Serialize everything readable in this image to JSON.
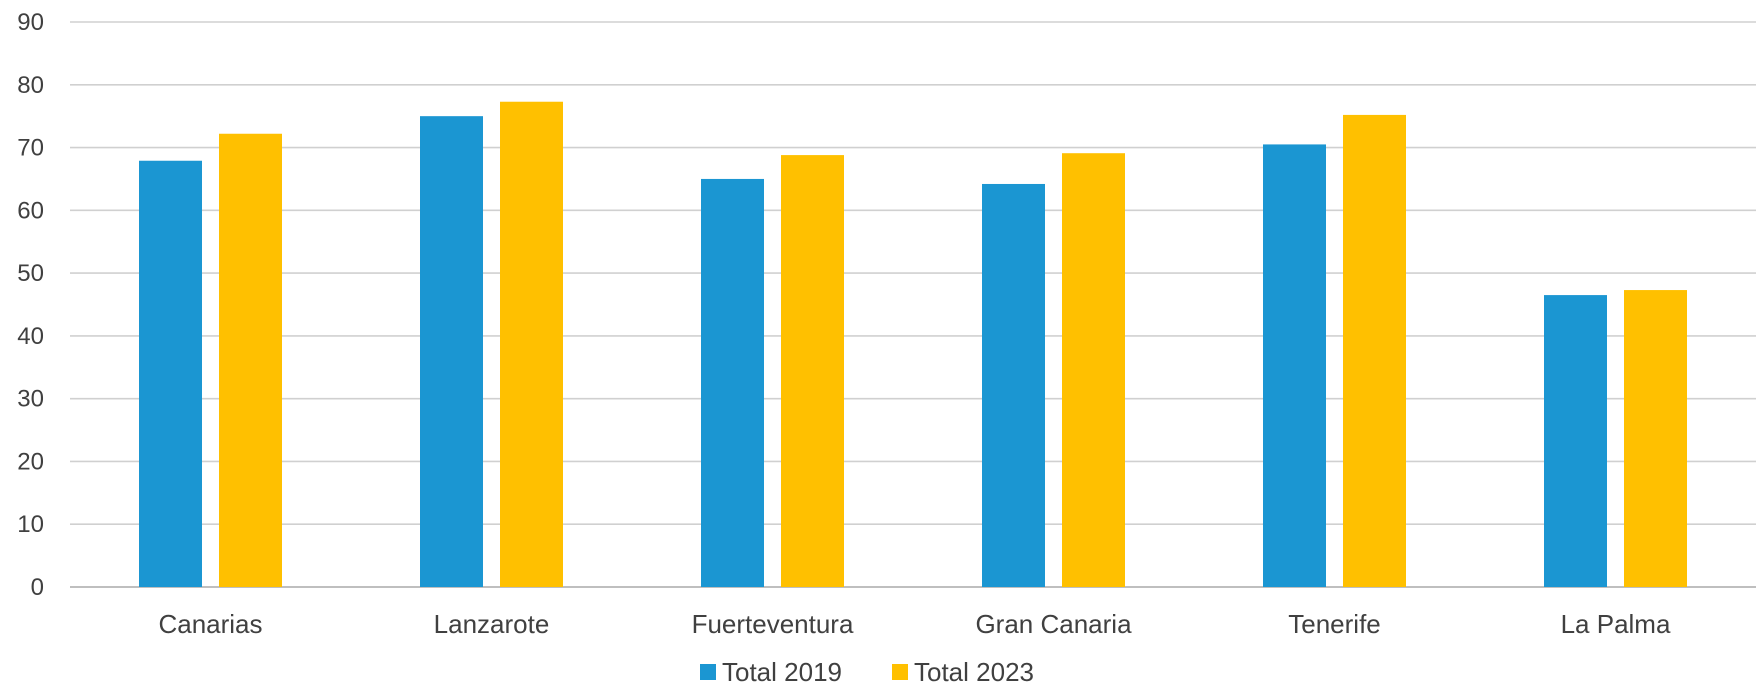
{
  "chart_data": {
    "type": "bar",
    "categories": [
      "Canarias",
      "Lanzarote",
      "Fuerteventura",
      "Gran Canaria",
      "Tenerife",
      "La Palma"
    ],
    "series": [
      {
        "name": "Total 2019",
        "color": "#1b96d2",
        "values": [
          67.9,
          75.0,
          65.0,
          64.2,
          70.5,
          46.5
        ]
      },
      {
        "name": "Total 2023",
        "color": "#ffc000",
        "values": [
          72.2,
          77.3,
          68.8,
          69.1,
          75.2,
          47.3
        ]
      }
    ],
    "title": "",
    "xlabel": "",
    "ylabel": "",
    "ylim": [
      0,
      90
    ],
    "yticks": [
      "0",
      "10",
      "20",
      "30",
      "40",
      "50",
      "60",
      "70",
      "80",
      "90"
    ],
    "grid": true,
    "legend_position": "bottom-center"
  }
}
